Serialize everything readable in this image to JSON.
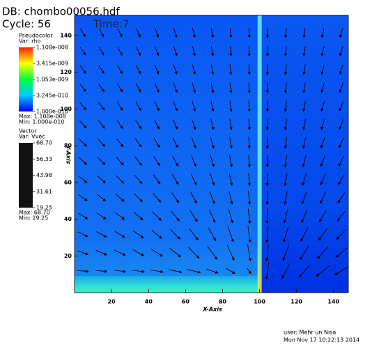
{
  "chart_data": {
    "type": "pseudocolor",
    "title": "DB: chombo00056.hdf",
    "subtitle": "Cycle: 56",
    "time_label": "Time:7",
    "x_label": "X-Axis",
    "y_label": "Y-Axis",
    "xlim": [
      0,
      148
    ],
    "ylim": [
      0,
      151
    ],
    "xticks": [
      20,
      40,
      60,
      80,
      100,
      120,
      140
    ],
    "yticks": [
      20,
      40,
      60,
      80,
      100,
      120,
      140
    ],
    "legends": [
      {
        "title": "Pseudocolor",
        "variable": "Var: rho",
        "scale": "log",
        "lim": [
          1e-10,
          1.108e-08
        ],
        "ticks": [
          {
            "value": 1.108e-08,
            "label": "1.108e-008"
          },
          {
            "value": 3.415e-09,
            "label": "3.415e-009"
          },
          {
            "value": 1.053e-09,
            "label": "1.053e-009"
          },
          {
            "value": 3.245e-10,
            "label": "3.245e-010"
          },
          {
            "value": 1e-10,
            "label": "1.000e-010"
          }
        ],
        "max_label": "Max: 1.108e-008",
        "min_label": "Min: 1.000e-010"
      },
      {
        "title": "Vector",
        "variable": "Var: Vvec",
        "scale": "linear",
        "lim": [
          19.25,
          68.7
        ],
        "ticks": [
          {
            "value": 68.7,
            "label": "68.70"
          },
          56.33,
          43.98,
          31.61,
          19.25
        ],
        "max_label": "Max: 68.70",
        "min_label": "Min: 19.25"
      }
    ],
    "user": "user: Mehr un Nisa",
    "timestamp": "Mon Nov 17 10:22:13 2014"
  }
}
